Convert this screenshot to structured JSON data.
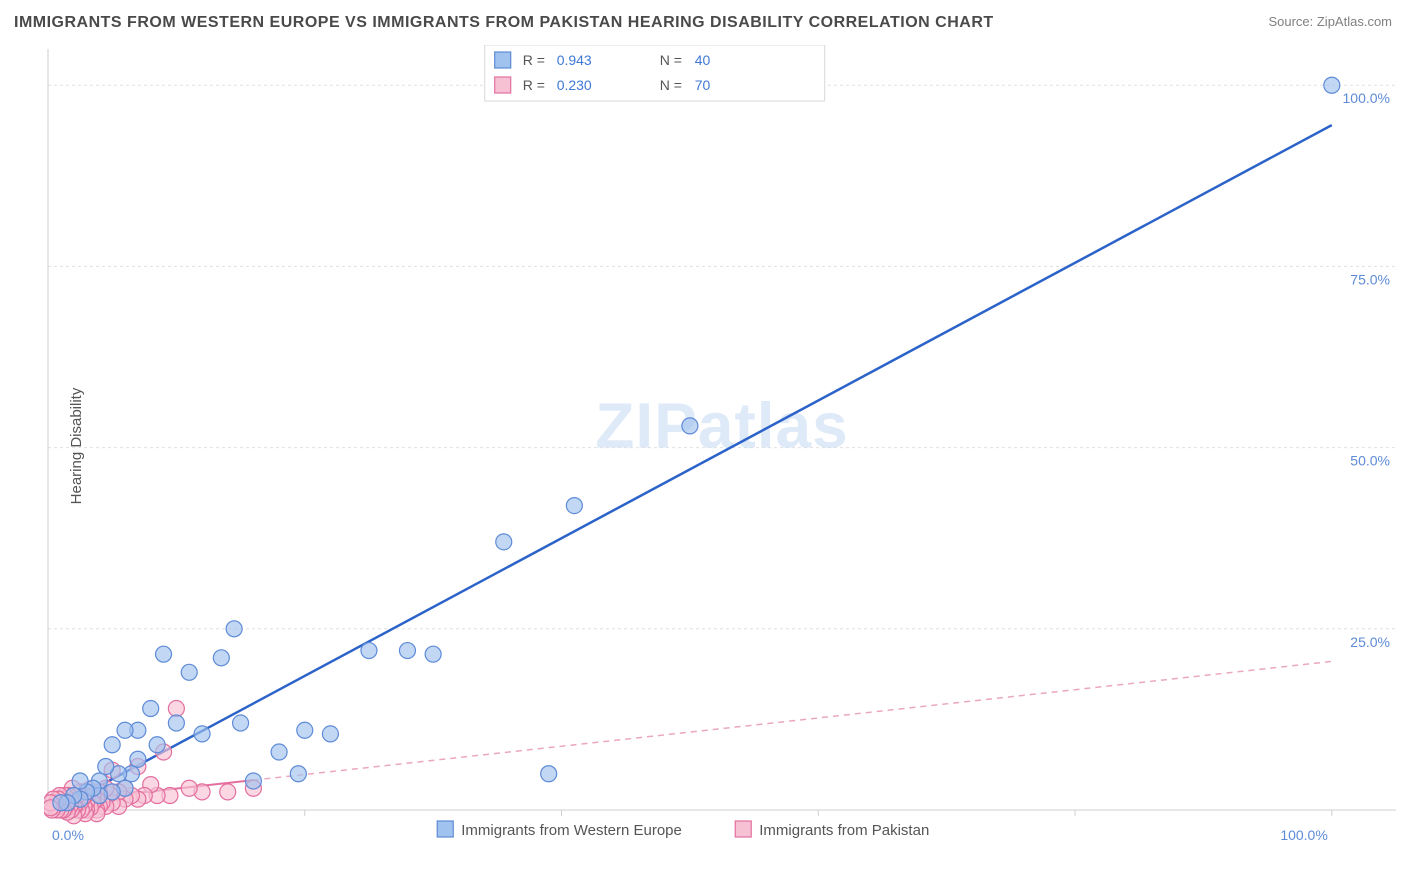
{
  "title": "IMMIGRANTS FROM WESTERN EUROPE VS IMMIGRANTS FROM PAKISTAN HEARING DISABILITY CORRELATION CHART",
  "source": "Source: ZipAtlas.com",
  "ylabel": "Hearing Disability",
  "watermark": "ZIPatlas",
  "chart": {
    "type": "scatter",
    "xlim": [
      0,
      105
    ],
    "ylim": [
      0,
      105
    ],
    "xtick_positions": [
      0,
      20,
      40,
      60,
      80,
      100
    ],
    "xtick_labels_shown": {
      "0": "0.0%",
      "100": "100.0%"
    },
    "ytick_positions": [
      0,
      25,
      50,
      75,
      100
    ],
    "ytick_labels_shown": {
      "25": "25.0%",
      "50": "50.0%",
      "75": "75.0%",
      "100": "100.0%"
    },
    "grid_color": "#e0e0e0",
    "background_color": "#ffffff",
    "axis_color": "#cfcfcf",
    "marker_radius": 8,
    "series": [
      {
        "name": "Immigrants from Western Europe",
        "color_fill": "#9fc2ee",
        "color_stroke": "#5e8bd7",
        "trend_color": "#2c63c9",
        "trend_style": "solid",
        "trend_slope": 0.95,
        "trend_intercept": -0.5,
        "R": 0.943,
        "N": 40,
        "points": [
          [
            100,
            100
          ],
          [
            50,
            53
          ],
          [
            41,
            42
          ],
          [
            35.5,
            37
          ],
          [
            30,
            21.5
          ],
          [
            28,
            22
          ],
          [
            25,
            22
          ],
          [
            20,
            11
          ],
          [
            22,
            10.5
          ],
          [
            19.5,
            5
          ],
          [
            18,
            8
          ],
          [
            16,
            4
          ],
          [
            15,
            12
          ],
          [
            14.5,
            25
          ],
          [
            13.5,
            21
          ],
          [
            12,
            10.5
          ],
          [
            11,
            19
          ],
          [
            10,
            12
          ],
          [
            9,
            21.5
          ],
          [
            8.5,
            9
          ],
          [
            8,
            14
          ],
          [
            39,
            5
          ],
          [
            7,
            11
          ],
          [
            7,
            7
          ],
          [
            6.5,
            5
          ],
          [
            6,
            11
          ],
          [
            6,
            3
          ],
          [
            5.5,
            5
          ],
          [
            5,
            9
          ],
          [
            5,
            2.5
          ],
          [
            4.5,
            6
          ],
          [
            4,
            4
          ],
          [
            4,
            2
          ],
          [
            3.5,
            3
          ],
          [
            3,
            2.5
          ],
          [
            2.5,
            4
          ],
          [
            2.5,
            1.5
          ],
          [
            2,
            2
          ],
          [
            1.5,
            1
          ],
          [
            1,
            1
          ]
        ]
      },
      {
        "name": "Immigrants from Pakistan",
        "color_fill": "#f7c1d4",
        "color_stroke": "#e36f9e",
        "trend_color": "#e36f9e",
        "trend_style": "dashed",
        "trend_slope": 0.195,
        "trend_intercept": 1.0,
        "R": 0.23,
        "N": 70,
        "points": [
          [
            16,
            3
          ],
          [
            14,
            2.5
          ],
          [
            12,
            2.5
          ],
          [
            11,
            3
          ],
          [
            10,
            14
          ],
          [
            9.5,
            2
          ],
          [
            9,
            8
          ],
          [
            8.5,
            2
          ],
          [
            8,
            3.5
          ],
          [
            7.5,
            2
          ],
          [
            7,
            6
          ],
          [
            7,
            1.5
          ],
          [
            6.5,
            2
          ],
          [
            6,
            3
          ],
          [
            6,
            1.5
          ],
          [
            5.5,
            0.5
          ],
          [
            5.5,
            2.5
          ],
          [
            5,
            5.5
          ],
          [
            5,
            1.0
          ],
          [
            4.8,
            2.2
          ],
          [
            4.5,
            0.5
          ],
          [
            4.5,
            3
          ],
          [
            4.2,
            1.0
          ],
          [
            4,
            2.5
          ],
          [
            4,
            0.5
          ],
          [
            3.8,
            0
          ],
          [
            3.8,
            1.5
          ],
          [
            3.8,
            -0.5
          ],
          [
            3.5,
            2
          ],
          [
            3.5,
            1
          ],
          [
            3.3,
            0.3
          ],
          [
            3.2,
            2.8
          ],
          [
            3,
            1
          ],
          [
            3,
            0
          ],
          [
            2.9,
            -0.5
          ],
          [
            2.9,
            2
          ],
          [
            2.8,
            0.5
          ],
          [
            2.7,
            1.6
          ],
          [
            2.6,
            0
          ],
          [
            2.5,
            2.5
          ],
          [
            2.5,
            1
          ],
          [
            2.3,
            0
          ],
          [
            2.2,
            1.8
          ],
          [
            2.1,
            0.5
          ],
          [
            2,
            2
          ],
          [
            2,
            0.5
          ],
          [
            2,
            -0.8
          ],
          [
            1.9,
            3
          ],
          [
            1.8,
            0
          ],
          [
            1.8,
            1.3
          ],
          [
            1.7,
            0.5
          ],
          [
            1.6,
            2
          ],
          [
            1.5,
            -0.3
          ],
          [
            1.5,
            1
          ],
          [
            1.4,
            0.5
          ],
          [
            1.3,
            2
          ],
          [
            1.2,
            0
          ],
          [
            1.1,
            1.5
          ],
          [
            1,
            1
          ],
          [
            1,
            0
          ],
          [
            0.9,
            2
          ],
          [
            0.8,
            0.5
          ],
          [
            0.8,
            1.5
          ],
          [
            0.7,
            0
          ],
          [
            0.6,
            1
          ],
          [
            0.5,
            0.5
          ],
          [
            0.4,
            1.5
          ],
          [
            0.3,
            0
          ],
          [
            0.2,
            1
          ],
          [
            0.2,
            0.3
          ]
        ]
      }
    ],
    "legend_top": {
      "rows": [
        {
          "swatch": "blue",
          "r_label": "R =",
          "r_val": "0.943",
          "n_label": "N =",
          "n_val": "40"
        },
        {
          "swatch": "pink",
          "r_label": "R =",
          "r_val": "0.230",
          "n_label": "N =",
          "n_val": "70"
        }
      ]
    },
    "legend_bottom": [
      {
        "swatch": "blue",
        "label": "Immigrants from Western Europe"
      },
      {
        "swatch": "pink",
        "label": "Immigrants from Pakistan"
      }
    ]
  }
}
